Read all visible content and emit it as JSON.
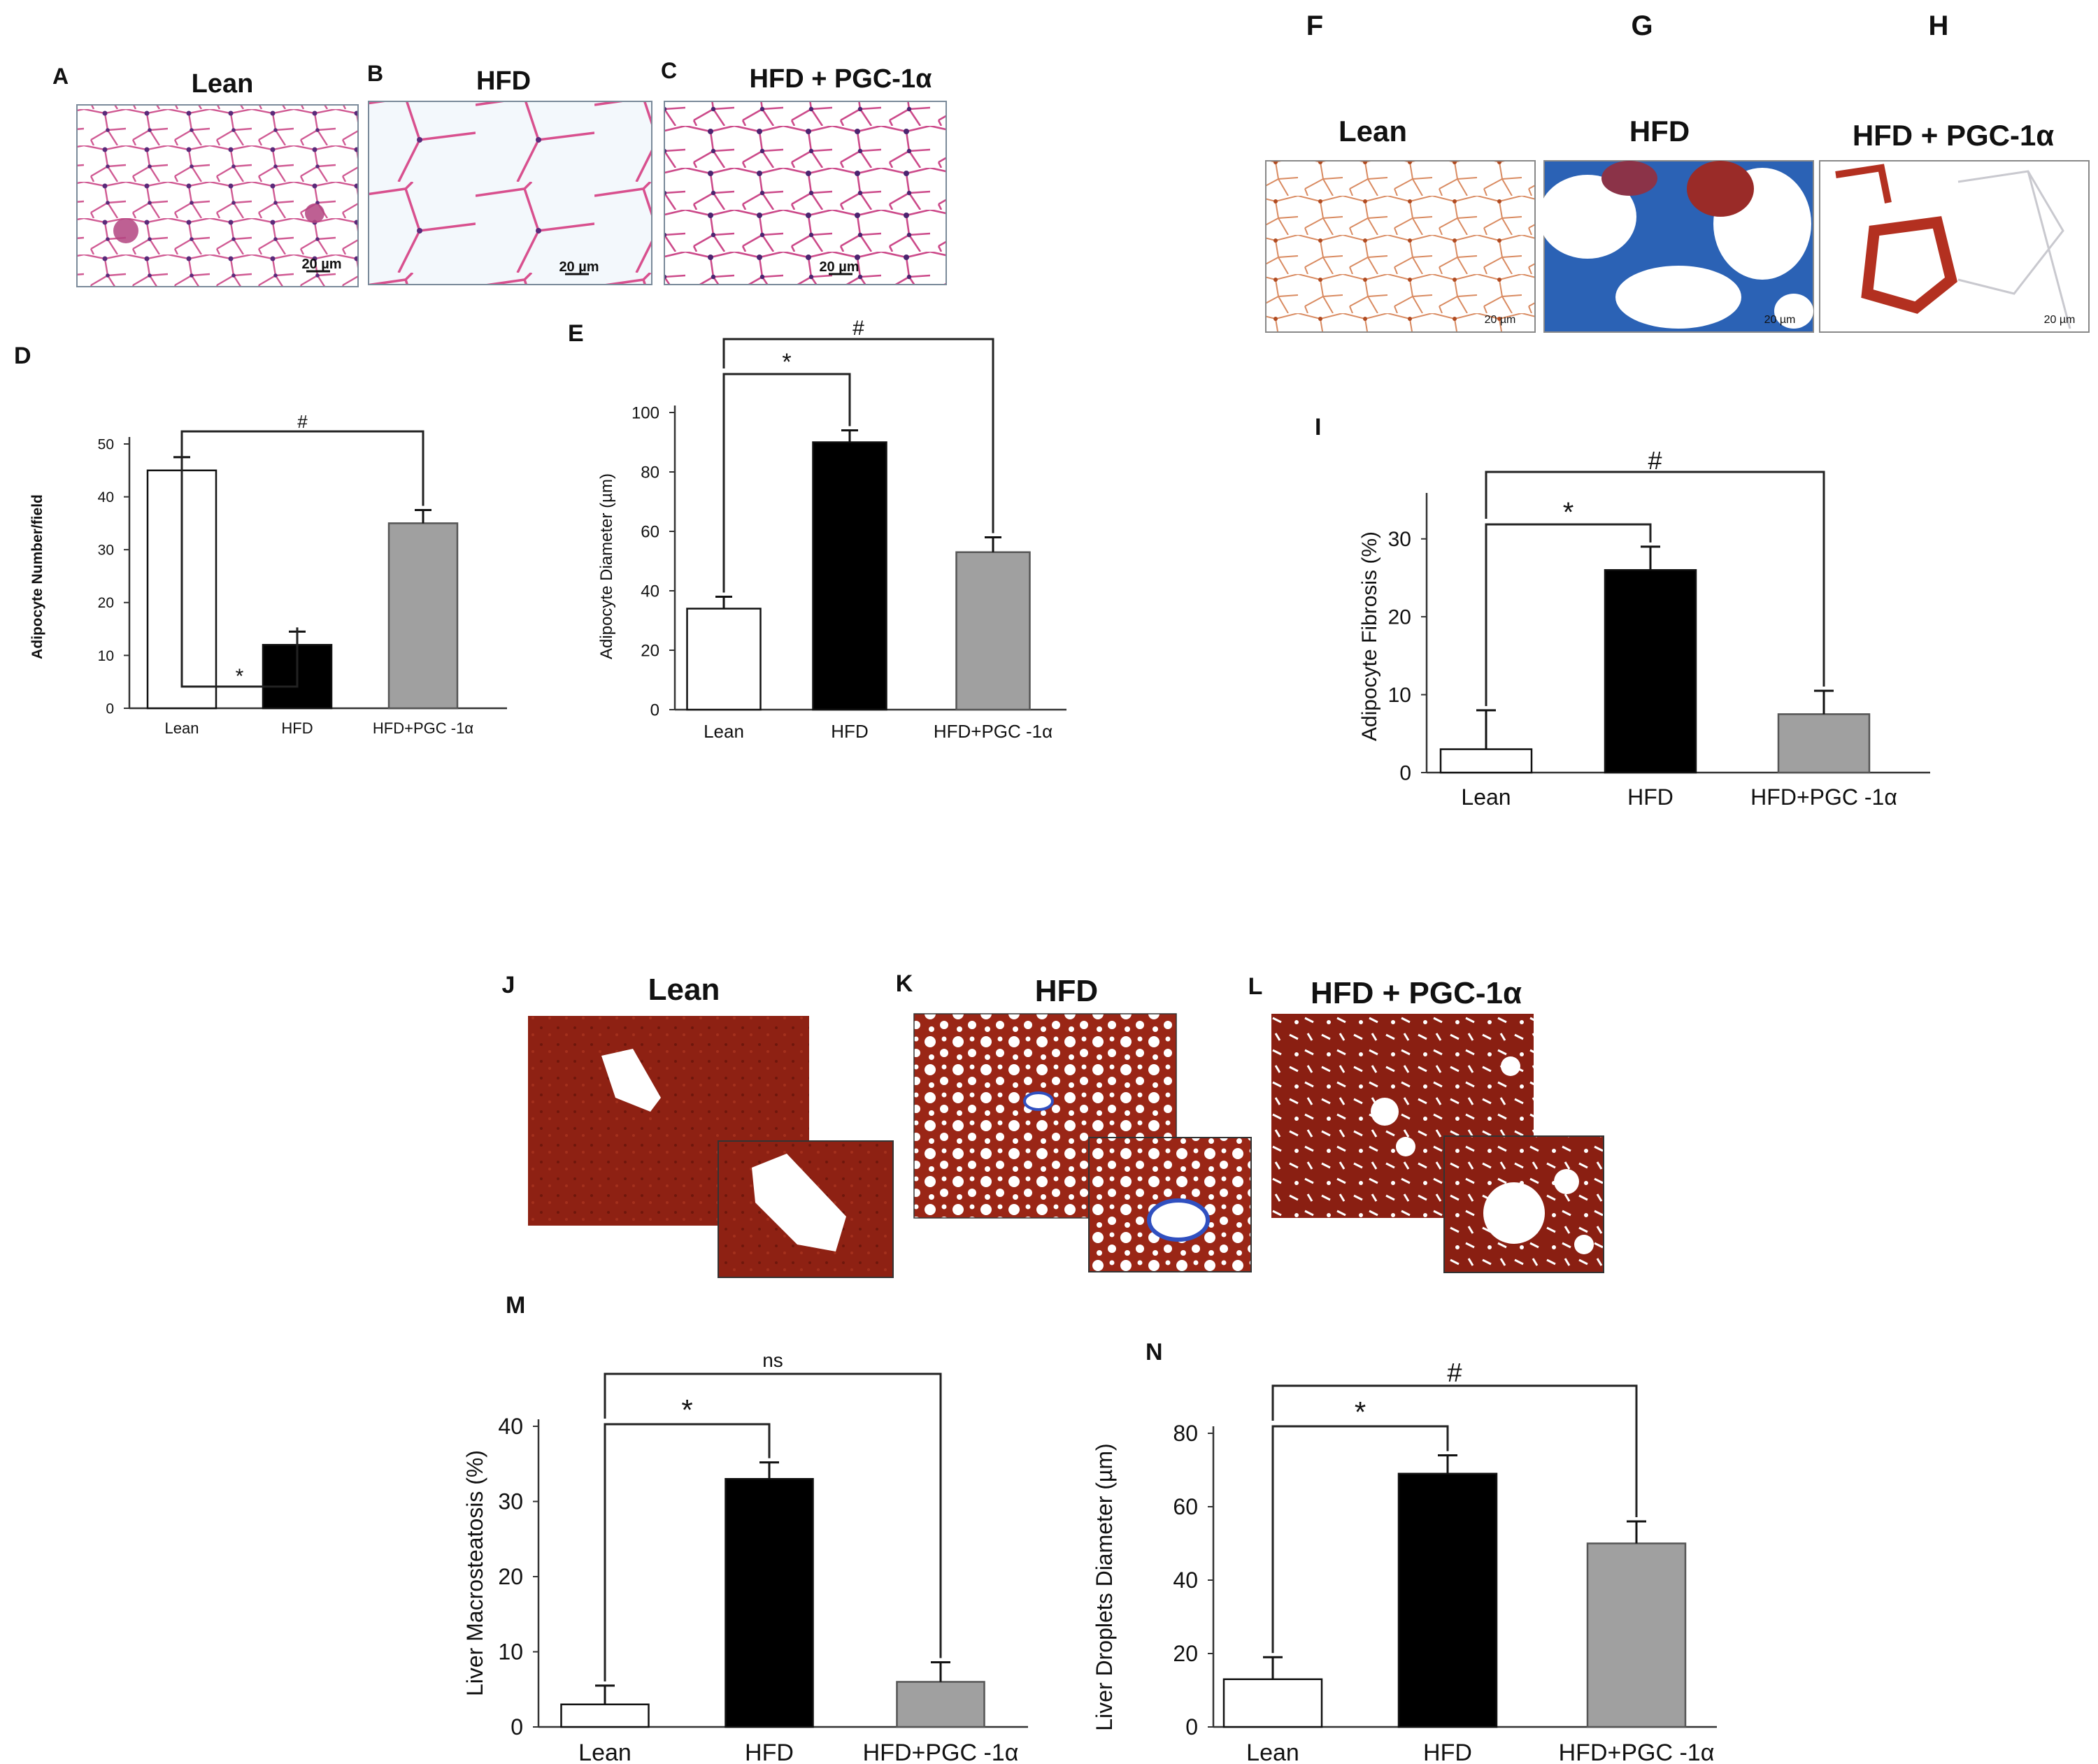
{
  "panels": {
    "A": {
      "letter": "A",
      "title": "Lean",
      "scale": "20 µm"
    },
    "B": {
      "letter": "B",
      "title": "HFD",
      "scale": "20 µm"
    },
    "C": {
      "letter": "C",
      "title": "HFD + PGC-1α",
      "scale": "20 µm"
    },
    "F": {
      "letter": "F",
      "title": "Lean",
      "scale": "20 µm"
    },
    "G": {
      "letter": "G",
      "title": "HFD",
      "scale": "20 µm"
    },
    "H": {
      "letter": "H",
      "title": "HFD + PGC-1α",
      "scale": "20 µm"
    },
    "J": {
      "letter": "J",
      "title": "Lean"
    },
    "K": {
      "letter": "K",
      "title": "HFD"
    },
    "L": {
      "letter": "L",
      "title": "HFD + PGC-1α"
    }
  },
  "colors": {
    "lean": "#ffffff",
    "hfd": "#000000",
    "pgc": "#a0a0a0",
    "he_pink": "#cf4a86",
    "trichrome_blue": "#2b62b5",
    "trichrome_red": "#b33d1e",
    "liver_red": "#8f1f12"
  },
  "chart_data": [
    {
      "id": "D",
      "letter": "D",
      "type": "bar",
      "categories": [
        "Lean",
        "HFD",
        "HFD+PGC -1α"
      ],
      "values": [
        45,
        12,
        35
      ],
      "errors": [
        2.5,
        2.5,
        2.5
      ],
      "ylabel": "Adipocyte Number/field",
      "ylim": [
        0,
        50
      ],
      "yticks": [
        "0",
        "10",
        "20",
        "30",
        "40",
        "50"
      ],
      "annotations": {
        "star": "*",
        "hash": "#"
      }
    },
    {
      "id": "E",
      "letter": "E",
      "type": "bar",
      "categories": [
        "Lean",
        "HFD",
        "HFD+PGC -1α"
      ],
      "values": [
        34,
        90,
        53
      ],
      "errors": [
        4,
        4,
        5
      ],
      "ylabel": "Adipocyte Diameter (µm)",
      "ylim": [
        0,
        100
      ],
      "yticks": [
        "0",
        "20",
        "40",
        "60",
        "80",
        "100"
      ],
      "annotations": {
        "star": "*",
        "hash": "#"
      }
    },
    {
      "id": "I",
      "letter": "I",
      "type": "bar",
      "categories": [
        "Lean",
        "HFD",
        "HFD+PGC -1α"
      ],
      "values": [
        3,
        26,
        7.5
      ],
      "errors": [
        5,
        3,
        3
      ],
      "ylabel": "Adipocyte Fibrosis (%)",
      "ylim": [
        0,
        35
      ],
      "yticks": [
        "0",
        "10",
        "20",
        "30"
      ],
      "annotations": {
        "star": "*",
        "hash": "#"
      }
    },
    {
      "id": "M",
      "letter": "M",
      "type": "bar",
      "categories": [
        "Lean",
        "HFD",
        "HFD+PGC -1α"
      ],
      "values": [
        3,
        33,
        6
      ],
      "errors": [
        2.5,
        2.2,
        2.6
      ],
      "ylabel": "Liver Macrosteatosis (%)",
      "ylim": [
        0,
        40
      ],
      "yticks": [
        "0",
        "10",
        "20",
        "30",
        "40"
      ],
      "annotations": {
        "star": "*",
        "hash": "ns"
      }
    },
    {
      "id": "N",
      "letter": "N",
      "type": "bar",
      "categories": [
        "Lean",
        "HFD",
        "HFD+PGC -1α"
      ],
      "values": [
        13,
        69,
        50
      ],
      "errors": [
        6,
        5,
        6
      ],
      "ylabel": "Liver Droplets Diameter (µm)",
      "ylim": [
        0,
        80
      ],
      "yticks": [
        "0",
        "20",
        "40",
        "60",
        "80"
      ],
      "annotations": {
        "star": "*",
        "hash": "#"
      }
    }
  ]
}
